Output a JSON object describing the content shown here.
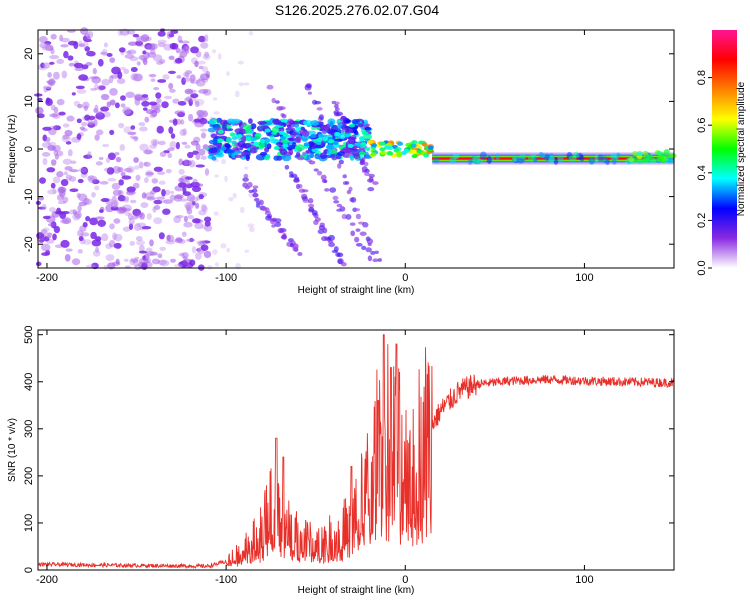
{
  "title": "S126.2025.276.02.07.G04",
  "chart_data": [
    {
      "type": "heatmap",
      "name": "spectrogram",
      "xlabel": "Height of straight line (km)",
      "ylabel": "Frequency (Hz)",
      "xlim": [
        -205,
        150
      ],
      "ylim": [
        -25,
        25
      ],
      "xticks": [
        -200,
        -100,
        0,
        100
      ],
      "xtick_labels": [
        "-200",
        "-100",
        "0",
        "100"
      ],
      "yticks": [
        -20,
        -10,
        0,
        10,
        20
      ],
      "ytick_labels": [
        "-20",
        "-10",
        "0",
        "10",
        "20"
      ],
      "colorbar": {
        "label": "Normalized spectral amplitude",
        "range": [
          0,
          1
        ],
        "ticks": [
          0.0,
          0.2,
          0.4,
          0.6,
          0.8
        ],
        "tick_labels": [
          "0.0",
          "0.2",
          "0.4",
          "0.6",
          "0.8"
        ],
        "colors": [
          "#ffffff",
          "#8a2be2",
          "#0000ff",
          "#00ffff",
          "#00ff00",
          "#ffff00",
          "#ff8000",
          "#ff0000",
          "#ff1493"
        ]
      },
      "features": {
        "noise_region_x": [
          -205,
          -110
        ],
        "turbulent_region_x": [
          -110,
          -20
        ],
        "transition_region_x": [
          -20,
          15
        ],
        "steady_carrier_x": [
          15,
          150
        ],
        "carrier_frequency": -2
      }
    },
    {
      "type": "line",
      "name": "snr",
      "xlabel": "Height of straight line (km)",
      "ylabel": "SNR (10 * v/v)",
      "xlim": [
        -205,
        150
      ],
      "ylim": [
        0,
        510
      ],
      "xticks": [
        -200,
        -100,
        0,
        100
      ],
      "xtick_labels": [
        "-200",
        "-100",
        "0",
        "100"
      ],
      "yticks": [
        0,
        100,
        200,
        300,
        400,
        500
      ],
      "ytick_labels": [
        "0",
        "100",
        "200",
        "300",
        "400",
        "500"
      ],
      "color": "#e8302a",
      "envelope_points": [
        [
          -205,
          12
        ],
        [
          -160,
          10
        ],
        [
          -110,
          8
        ],
        [
          -100,
          18
        ],
        [
          -90,
          45
        ],
        [
          -85,
          60
        ],
        [
          -80,
          80
        ],
        [
          -75,
          150
        ],
        [
          -70,
          100
        ],
        [
          -60,
          70
        ],
        [
          -50,
          55
        ],
        [
          -40,
          70
        ],
        [
          -30,
          100
        ],
        [
          -25,
          140
        ],
        [
          -20,
          180
        ],
        [
          -15,
          260
        ],
        [
          -10,
          300
        ],
        [
          -5,
          260
        ],
        [
          0,
          220
        ],
        [
          5,
          240
        ],
        [
          10,
          280
        ],
        [
          15,
          310
        ],
        [
          20,
          340
        ],
        [
          25,
          360
        ],
        [
          30,
          380
        ],
        [
          40,
          395
        ],
        [
          60,
          402
        ],
        [
          80,
          405
        ],
        [
          100,
          402
        ],
        [
          120,
          400
        ],
        [
          150,
          398
        ]
      ],
      "spikes": [
        [
          -72,
          280
        ],
        [
          -68,
          240
        ],
        [
          -30,
          220
        ],
        [
          -15,
          360
        ],
        [
          -12,
          500
        ],
        [
          -8,
          430
        ],
        [
          -5,
          480
        ]
      ]
    }
  ]
}
